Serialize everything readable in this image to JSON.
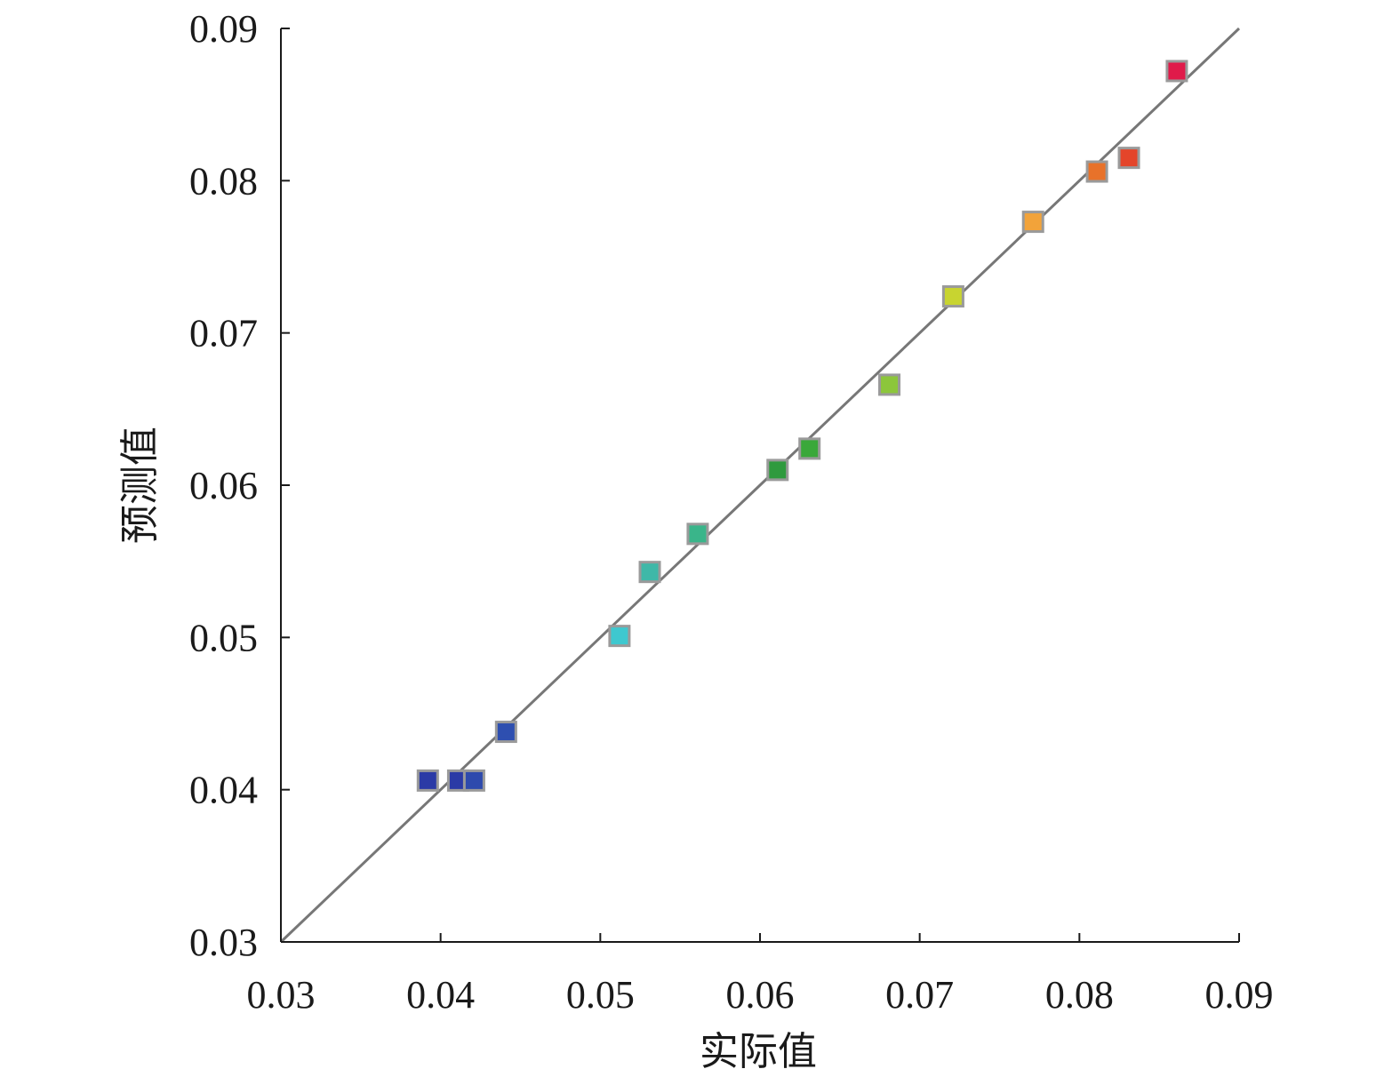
{
  "chart_data": {
    "type": "scatter",
    "title": "",
    "xlabel": "实际值",
    "ylabel": "预测值",
    "xlim": [
      0.03,
      0.09
    ],
    "ylim": [
      0.03,
      0.09
    ],
    "x_ticks": [
      "0.03",
      "0.04",
      "0.05",
      "0.06",
      "0.07",
      "0.08",
      "0.09"
    ],
    "y_ticks": [
      "0.03",
      "0.04",
      "0.05",
      "0.06",
      "0.07",
      "0.08",
      "0.09"
    ],
    "grid": false,
    "reference_line": {
      "from": [
        0.03,
        0.03
      ],
      "to": [
        0.09,
        0.09
      ],
      "color": "#777777"
    },
    "points": [
      {
        "x": 0.0392,
        "y": 0.0406,
        "color": "#2b3aa6"
      },
      {
        "x": 0.0411,
        "y": 0.0406,
        "color": "#2b3aa6"
      },
      {
        "x": 0.0421,
        "y": 0.0406,
        "color": "#2e4aad"
      },
      {
        "x": 0.0441,
        "y": 0.0438,
        "color": "#2e4fb0"
      },
      {
        "x": 0.0512,
        "y": 0.0501,
        "color": "#3ec8cf"
      },
      {
        "x": 0.0531,
        "y": 0.0543,
        "color": "#3fb8a8"
      },
      {
        "x": 0.0561,
        "y": 0.0568,
        "color": "#3ab58a"
      },
      {
        "x": 0.0611,
        "y": 0.061,
        "color": "#2f9a3e"
      },
      {
        "x": 0.0631,
        "y": 0.0624,
        "color": "#3aa83a"
      },
      {
        "x": 0.0681,
        "y": 0.0666,
        "color": "#8cc63b"
      },
      {
        "x": 0.0721,
        "y": 0.0724,
        "color": "#c8d430"
      },
      {
        "x": 0.0771,
        "y": 0.0773,
        "color": "#f2a33a"
      },
      {
        "x": 0.0811,
        "y": 0.0806,
        "color": "#e8722a"
      },
      {
        "x": 0.0831,
        "y": 0.0815,
        "color": "#e4452a"
      },
      {
        "x": 0.0861,
        "y": 0.0872,
        "color": "#e01a4a"
      }
    ]
  }
}
